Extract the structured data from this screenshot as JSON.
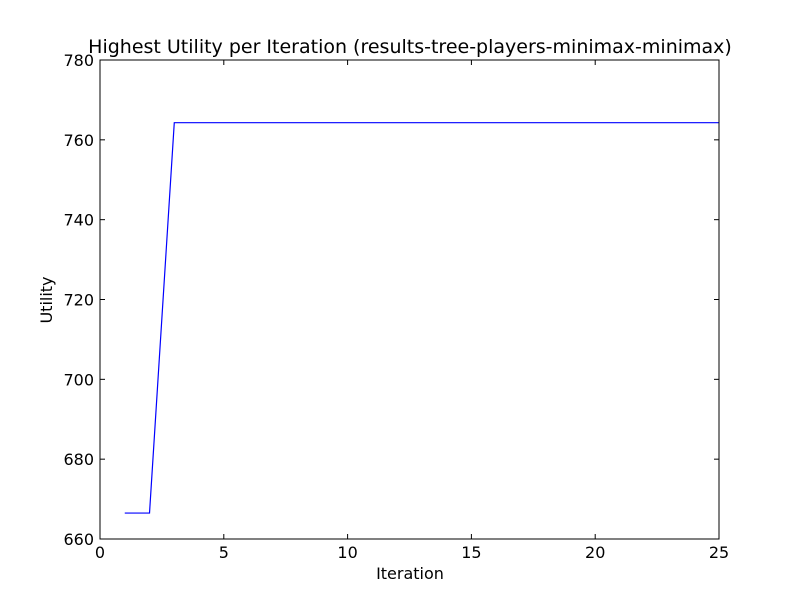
{
  "chart_data": {
    "type": "line",
    "title": "Highest Utility per Iteration (results-tree-players-minimax-minimax)",
    "xlabel": "Iteration",
    "ylabel": "Utility",
    "xlim": [
      0,
      25
    ],
    "ylim": [
      660,
      780
    ],
    "xticks": [
      0,
      5,
      10,
      15,
      20,
      25
    ],
    "yticks": [
      660,
      680,
      700,
      720,
      740,
      760,
      780
    ],
    "grid": false,
    "legend": "none",
    "series": [
      {
        "color": "#0000ff",
        "x": [
          1,
          2,
          3,
          4,
          5,
          6,
          7,
          8,
          9,
          10,
          11,
          12,
          13,
          14,
          15,
          16,
          17,
          18,
          19,
          20,
          21,
          22,
          23,
          24,
          25
        ],
        "values": [
          666.5,
          666.5,
          764.3,
          764.3,
          764.3,
          764.3,
          764.3,
          764.3,
          764.3,
          764.3,
          764.3,
          764.3,
          764.3,
          764.3,
          764.3,
          764.3,
          764.3,
          764.3,
          764.3,
          764.3,
          764.3,
          764.3,
          764.3,
          764.3,
          764.3
        ]
      }
    ]
  }
}
